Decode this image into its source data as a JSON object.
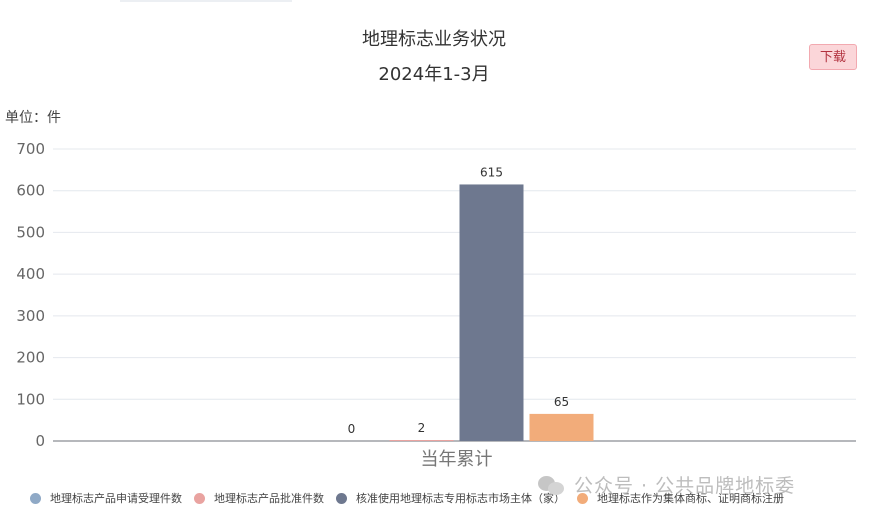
{
  "chart_data": {
    "type": "bar",
    "title": "地理标志业务状况",
    "subtitle": "2024年1-3月",
    "unit_label": "单位：件",
    "categories": [
      "当年累计"
    ],
    "ylim": [
      0,
      700
    ],
    "yticks": [
      0,
      100,
      200,
      300,
      400,
      500,
      600,
      700
    ],
    "grid": true,
    "legend_position": "bottom",
    "series": [
      {
        "name": "地理标志产品申请受理件数",
        "values": [
          0
        ],
        "color": "#8fa9c6"
      },
      {
        "name": "地理标志产品批准件数",
        "values": [
          2
        ],
        "color": "#e9a3a0"
      },
      {
        "name": "核准使用地理标志专用标志市场主体（家）",
        "values": [
          615
        ],
        "color": "#6e788f"
      },
      {
        "name": "地理标志作为集体商标、证明商标注册",
        "values": [
          65
        ],
        "color": "#f2ac7a"
      }
    ]
  },
  "toolbar": {
    "download_label": "下载"
  },
  "watermark": {
    "text": "公众号 · 公共品牌地标委"
  }
}
